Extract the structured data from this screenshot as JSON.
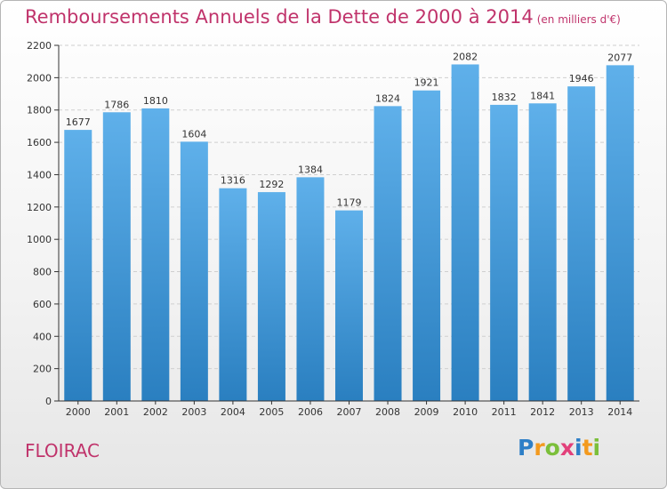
{
  "title": "Remboursements Annuels de la Dette de 2000 à 2014",
  "unit": "(en milliers d'€)",
  "city": "FLOIRAC",
  "logo": {
    "text": "Proxiti",
    "letters": [
      {
        "ch": "P",
        "color": "#2e7fc7"
      },
      {
        "ch": "r",
        "color": "#f39a1f"
      },
      {
        "ch": "o",
        "color": "#7bbf3a"
      },
      {
        "ch": "x",
        "color": "#e2407a"
      },
      {
        "ch": "i",
        "color": "#2e7fc7"
      },
      {
        "ch": "t",
        "color": "#f39a1f"
      },
      {
        "ch": "i",
        "color": "#7bbf3a"
      }
    ]
  },
  "colors": {
    "accent": "#c0336b",
    "bar_top": "#5fb0ea",
    "bar_bottom": "#2a7fc0",
    "grid": "#cfcfcf",
    "axis": "#333333"
  },
  "chart_data": {
    "type": "bar",
    "title": "Remboursements Annuels de la Dette de 2000 à 2014",
    "xlabel": "",
    "ylabel": "",
    "categories": [
      "2000",
      "2001",
      "2002",
      "2003",
      "2004",
      "2005",
      "2006",
      "2007",
      "2008",
      "2009",
      "2010",
      "2011",
      "2012",
      "2013",
      "2014"
    ],
    "values": [
      1677,
      1786,
      1810,
      1604,
      1316,
      1292,
      1384,
      1179,
      1824,
      1921,
      2082,
      1832,
      1841,
      1946,
      2077
    ],
    "ylim": [
      0,
      2200
    ],
    "yticks": [
      0,
      200,
      400,
      600,
      800,
      1000,
      1200,
      1400,
      1600,
      1800,
      2000,
      2200
    ],
    "grid": true,
    "data_labels": true
  }
}
